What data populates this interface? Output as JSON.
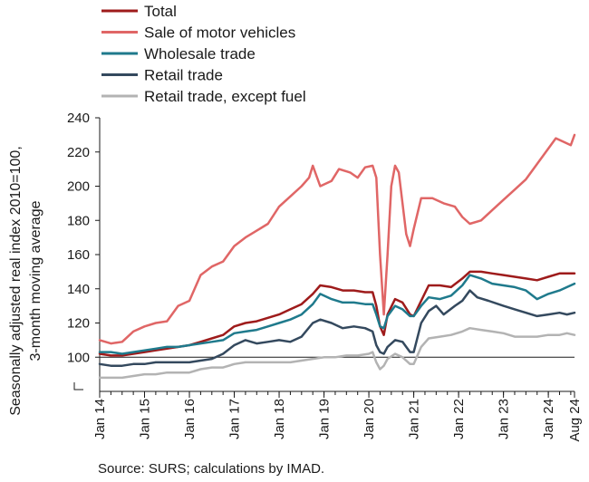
{
  "chart_data": {
    "type": "line",
    "ylabel": "Seasonally adjusted real index 2010=100, 3-month moving average",
    "ylabel_lines": [
      "Seasonally adjusted real index 2010=100,",
      "3-month moving average"
    ],
    "ylim": [
      80,
      240
    ],
    "yticks": [
      100,
      120,
      140,
      160,
      180,
      200,
      220,
      240
    ],
    "xlim": [
      "2014-01",
      "2024-08"
    ],
    "xtick_labels": [
      "Jan 14",
      "Jan 15",
      "Jan 16",
      "Jan 17",
      "Jan 18",
      "Jan 19",
      "Jan 20",
      "Jan 21",
      "Jan 22",
      "Jan 23",
      "Jan 24",
      "Aug 24"
    ],
    "xticks": [
      "2014-01",
      "2015-01",
      "2016-01",
      "2017-01",
      "2018-01",
      "2019-01",
      "2020-01",
      "2021-01",
      "2022-01",
      "2023-01",
      "2024-01",
      "2024-08"
    ],
    "reference_line": 100,
    "grid": false,
    "legend_position": "top-left",
    "source": "Source: SURS; calculations by IMAD.",
    "series": [
      {
        "name": "Sale of motor vehicles",
        "color": "#e06666",
        "points": [
          [
            "2014-01",
            110
          ],
          [
            "2014-04",
            108
          ],
          [
            "2014-07",
            109
          ],
          [
            "2014-10",
            115
          ],
          [
            "2015-01",
            118
          ],
          [
            "2015-04",
            120
          ],
          [
            "2015-07",
            121
          ],
          [
            "2015-10",
            130
          ],
          [
            "2016-01",
            133
          ],
          [
            "2016-04",
            148
          ],
          [
            "2016-07",
            153
          ],
          [
            "2016-10",
            156
          ],
          [
            "2017-01",
            165
          ],
          [
            "2017-04",
            170
          ],
          [
            "2017-07",
            174
          ],
          [
            "2017-10",
            178
          ],
          [
            "2018-01",
            188
          ],
          [
            "2018-04",
            194
          ],
          [
            "2018-07",
            200
          ],
          [
            "2018-09",
            205
          ],
          [
            "2018-10",
            212
          ],
          [
            "2018-12",
            200
          ],
          [
            "2019-03",
            203
          ],
          [
            "2019-05",
            210
          ],
          [
            "2019-08",
            208
          ],
          [
            "2019-10",
            205
          ],
          [
            "2019-12",
            211
          ],
          [
            "2020-02",
            212
          ],
          [
            "2020-03",
            205
          ],
          [
            "2020-04",
            160
          ],
          [
            "2020-05",
            125
          ],
          [
            "2020-06",
            160
          ],
          [
            "2020-07",
            200
          ],
          [
            "2020-08",
            212
          ],
          [
            "2020-09",
            208
          ],
          [
            "2020-10",
            190
          ],
          [
            "2020-11",
            172
          ],
          [
            "2020-12",
            165
          ],
          [
            "2021-01",
            175
          ],
          [
            "2021-03",
            193
          ],
          [
            "2021-06",
            193
          ],
          [
            "2021-09",
            190
          ],
          [
            "2021-12",
            188
          ],
          [
            "2022-02",
            182
          ],
          [
            "2022-04",
            178
          ],
          [
            "2022-07",
            180
          ],
          [
            "2022-10",
            186
          ],
          [
            "2023-01",
            192
          ],
          [
            "2023-04",
            198
          ],
          [
            "2023-07",
            204
          ],
          [
            "2023-10",
            213
          ],
          [
            "2024-01",
            222
          ],
          [
            "2024-03",
            228
          ],
          [
            "2024-05",
            226
          ],
          [
            "2024-07",
            224
          ],
          [
            "2024-08",
            230
          ]
        ]
      },
      {
        "name": "Total",
        "color": "#9e1b1b",
        "points": [
          [
            "2014-01",
            102
          ],
          [
            "2014-04",
            101
          ],
          [
            "2014-07",
            101
          ],
          [
            "2014-10",
            102
          ],
          [
            "2015-01",
            103
          ],
          [
            "2015-04",
            104
          ],
          [
            "2015-07",
            105
          ],
          [
            "2015-10",
            106
          ],
          [
            "2016-01",
            107
          ],
          [
            "2016-04",
            109
          ],
          [
            "2016-07",
            111
          ],
          [
            "2016-10",
            113
          ],
          [
            "2017-01",
            118
          ],
          [
            "2017-04",
            120
          ],
          [
            "2017-07",
            121
          ],
          [
            "2017-10",
            123
          ],
          [
            "2018-01",
            125
          ],
          [
            "2018-04",
            128
          ],
          [
            "2018-07",
            131
          ],
          [
            "2018-10",
            137
          ],
          [
            "2018-12",
            142
          ],
          [
            "2019-03",
            141
          ],
          [
            "2019-06",
            139
          ],
          [
            "2019-09",
            139
          ],
          [
            "2019-12",
            138
          ],
          [
            "2020-02",
            138
          ],
          [
            "2020-03",
            130
          ],
          [
            "2020-04",
            118
          ],
          [
            "2020-05",
            113
          ],
          [
            "2020-06",
            125
          ],
          [
            "2020-08",
            134
          ],
          [
            "2020-10",
            132
          ],
          [
            "2020-12",
            125
          ],
          [
            "2021-01",
            124
          ],
          [
            "2021-03",
            133
          ],
          [
            "2021-05",
            142
          ],
          [
            "2021-08",
            142
          ],
          [
            "2021-11",
            141
          ],
          [
            "2022-02",
            146
          ],
          [
            "2022-04",
            150
          ],
          [
            "2022-07",
            150
          ],
          [
            "2022-10",
            149
          ],
          [
            "2023-01",
            148
          ],
          [
            "2023-04",
            147
          ],
          [
            "2023-07",
            146
          ],
          [
            "2023-10",
            145
          ],
          [
            "2024-01",
            147
          ],
          [
            "2024-04",
            149
          ],
          [
            "2024-08",
            149
          ]
        ]
      },
      {
        "name": "Wholesale trade",
        "color": "#1f7a8c",
        "points": [
          [
            "2014-01",
            103
          ],
          [
            "2014-04",
            103
          ],
          [
            "2014-07",
            102
          ],
          [
            "2014-10",
            103
          ],
          [
            "2015-01",
            104
          ],
          [
            "2015-04",
            105
          ],
          [
            "2015-07",
            106
          ],
          [
            "2015-10",
            106
          ],
          [
            "2016-01",
            107
          ],
          [
            "2016-04",
            108
          ],
          [
            "2016-07",
            109
          ],
          [
            "2016-10",
            110
          ],
          [
            "2017-01",
            114
          ],
          [
            "2017-04",
            115
          ],
          [
            "2017-07",
            116
          ],
          [
            "2017-10",
            118
          ],
          [
            "2018-01",
            120
          ],
          [
            "2018-04",
            122
          ],
          [
            "2018-07",
            125
          ],
          [
            "2018-10",
            131
          ],
          [
            "2018-12",
            137
          ],
          [
            "2019-03",
            134
          ],
          [
            "2019-06",
            132
          ],
          [
            "2019-09",
            132
          ],
          [
            "2019-12",
            131
          ],
          [
            "2020-02",
            131
          ],
          [
            "2020-03",
            125
          ],
          [
            "2020-04",
            118
          ],
          [
            "2020-05",
            117
          ],
          [
            "2020-06",
            124
          ],
          [
            "2020-08",
            130
          ],
          [
            "2020-10",
            128
          ],
          [
            "2020-12",
            124
          ],
          [
            "2021-01",
            124
          ],
          [
            "2021-03",
            130
          ],
          [
            "2021-05",
            135
          ],
          [
            "2021-08",
            134
          ],
          [
            "2021-11",
            136
          ],
          [
            "2022-02",
            142
          ],
          [
            "2022-04",
            148
          ],
          [
            "2022-07",
            146
          ],
          [
            "2022-10",
            143
          ],
          [
            "2023-01",
            142
          ],
          [
            "2023-04",
            141
          ],
          [
            "2023-07",
            139
          ],
          [
            "2023-10",
            134
          ],
          [
            "2024-01",
            137
          ],
          [
            "2024-04",
            139
          ],
          [
            "2024-06",
            141
          ],
          [
            "2024-08",
            143
          ]
        ]
      },
      {
        "name": "Retail trade",
        "color": "#34495e",
        "points": [
          [
            "2014-01",
            96
          ],
          [
            "2014-04",
            95
          ],
          [
            "2014-07",
            95
          ],
          [
            "2014-10",
            96
          ],
          [
            "2015-01",
            96
          ],
          [
            "2015-04",
            97
          ],
          [
            "2015-07",
            97
          ],
          [
            "2015-10",
            97
          ],
          [
            "2016-01",
            97
          ],
          [
            "2016-04",
            98
          ],
          [
            "2016-07",
            99
          ],
          [
            "2016-10",
            102
          ],
          [
            "2017-01",
            107
          ],
          [
            "2017-04",
            110
          ],
          [
            "2017-07",
            108
          ],
          [
            "2017-10",
            109
          ],
          [
            "2018-01",
            110
          ],
          [
            "2018-04",
            109
          ],
          [
            "2018-07",
            112
          ],
          [
            "2018-10",
            120
          ],
          [
            "2018-12",
            122
          ],
          [
            "2019-03",
            120
          ],
          [
            "2019-06",
            117
          ],
          [
            "2019-09",
            118
          ],
          [
            "2019-12",
            117
          ],
          [
            "2020-02",
            115
          ],
          [
            "2020-03",
            107
          ],
          [
            "2020-04",
            103
          ],
          [
            "2020-05",
            102
          ],
          [
            "2020-06",
            106
          ],
          [
            "2020-08",
            110
          ],
          [
            "2020-10",
            109
          ],
          [
            "2020-12",
            103
          ],
          [
            "2021-01",
            103
          ],
          [
            "2021-03",
            120
          ],
          [
            "2021-05",
            127
          ],
          [
            "2021-07",
            130
          ],
          [
            "2021-09",
            125
          ],
          [
            "2021-12",
            130
          ],
          [
            "2022-02",
            133
          ],
          [
            "2022-04",
            139
          ],
          [
            "2022-06",
            135
          ],
          [
            "2022-09",
            133
          ],
          [
            "2023-01",
            130
          ],
          [
            "2023-04",
            128
          ],
          [
            "2023-07",
            126
          ],
          [
            "2023-10",
            124
          ],
          [
            "2024-01",
            125
          ],
          [
            "2024-04",
            126
          ],
          [
            "2024-06",
            125
          ],
          [
            "2024-08",
            126
          ]
        ]
      },
      {
        "name": "Retail trade, except fuel",
        "color": "#b3b3b3",
        "points": [
          [
            "2014-01",
            88
          ],
          [
            "2014-04",
            88
          ],
          [
            "2014-07",
            88
          ],
          [
            "2014-10",
            89
          ],
          [
            "2015-01",
            90
          ],
          [
            "2015-04",
            90
          ],
          [
            "2015-07",
            91
          ],
          [
            "2015-10",
            91
          ],
          [
            "2016-01",
            91
          ],
          [
            "2016-04",
            93
          ],
          [
            "2016-07",
            94
          ],
          [
            "2016-10",
            94
          ],
          [
            "2017-01",
            96
          ],
          [
            "2017-04",
            97
          ],
          [
            "2017-07",
            97
          ],
          [
            "2017-10",
            97
          ],
          [
            "2018-01",
            97
          ],
          [
            "2018-04",
            97
          ],
          [
            "2018-07",
            98
          ],
          [
            "2018-10",
            99
          ],
          [
            "2019-01",
            100
          ],
          [
            "2019-04",
            100
          ],
          [
            "2019-07",
            101
          ],
          [
            "2019-10",
            101
          ],
          [
            "2020-01",
            102
          ],
          [
            "2020-02",
            103
          ],
          [
            "2020-03",
            97
          ],
          [
            "2020-04",
            93
          ],
          [
            "2020-05",
            95
          ],
          [
            "2020-06",
            99
          ],
          [
            "2020-08",
            102
          ],
          [
            "2020-10",
            100
          ],
          [
            "2020-12",
            96
          ],
          [
            "2021-01",
            96
          ],
          [
            "2021-03",
            106
          ],
          [
            "2021-05",
            111
          ],
          [
            "2021-08",
            112
          ],
          [
            "2021-11",
            113
          ],
          [
            "2022-02",
            115
          ],
          [
            "2022-04",
            117
          ],
          [
            "2022-07",
            116
          ],
          [
            "2022-10",
            115
          ],
          [
            "2023-01",
            114
          ],
          [
            "2023-04",
            112
          ],
          [
            "2023-07",
            112
          ],
          [
            "2023-10",
            112
          ],
          [
            "2024-01",
            113
          ],
          [
            "2024-04",
            113
          ],
          [
            "2024-06",
            114
          ],
          [
            "2024-08",
            113
          ]
        ]
      }
    ],
    "legend": [
      {
        "label": "Total",
        "color": "#9e1b1b"
      },
      {
        "label": "Sale of motor vehicles",
        "color": "#e06666"
      },
      {
        "label": "Wholesale trade",
        "color": "#1f7a8c"
      },
      {
        "label": "Retail trade",
        "color": "#34495e"
      },
      {
        "label": "Retail trade, except fuel",
        "color": "#b3b3b3"
      }
    ]
  }
}
